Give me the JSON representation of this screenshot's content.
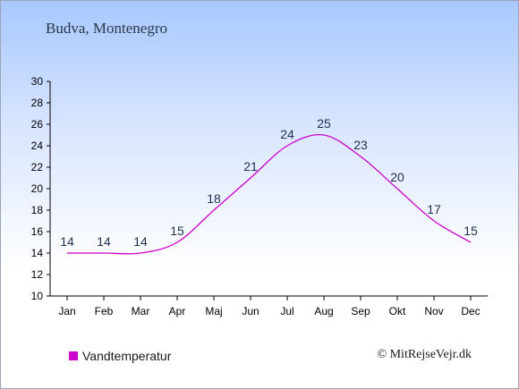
{
  "location": "Budva, Montenegro",
  "credit": "© MitRejseVejr.dk",
  "legend": {
    "label": "Vandtemperatur",
    "color": "#cc00cc"
  },
  "chart_data": {
    "type": "line",
    "categories": [
      "Jan",
      "Feb",
      "Mar",
      "Apr",
      "Maj",
      "Jun",
      "Jul",
      "Aug",
      "Sep",
      "Okt",
      "Nov",
      "Dec"
    ],
    "series": [
      {
        "name": "Vandtemperatur",
        "values": [
          14,
          14,
          14,
          15,
          18,
          21,
          24,
          25,
          23,
          20,
          17,
          15
        ]
      }
    ],
    "ylim": [
      10,
      30
    ],
    "yticks": [
      10,
      12,
      14,
      16,
      18,
      20,
      22,
      24,
      26,
      28,
      30
    ],
    "line_color": "#cc00cc",
    "label_color": "#1f2f4f",
    "grid": false
  }
}
